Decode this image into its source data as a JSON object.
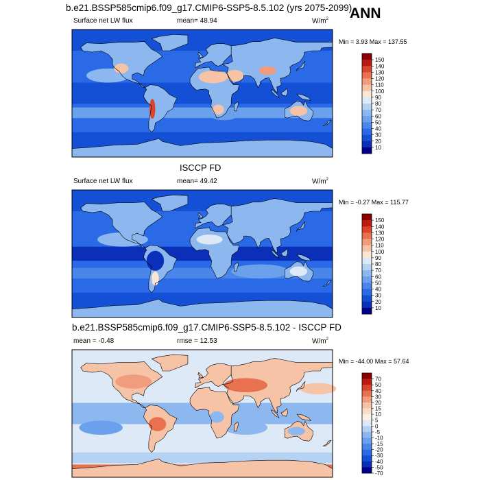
{
  "season": "ANN",
  "charts": [
    {
      "title": "b.e21.BSSP585cmip6.f09_g17.CMIP6-SSP5-8.5.102 (yrs 2075-2099)",
      "left_label": "Surface net LW flux",
      "center_label": "mean=  48.94",
      "unit": "W/m",
      "unit_sup": "2",
      "minmax": "Min =  3.93 Max = 137.55"
    },
    {
      "title": "ISCCP FD",
      "left_label": "Surface net LW flux",
      "center_label": "mean=  49.42",
      "unit": "W/m",
      "unit_sup": "2",
      "minmax": "Min =  -0.27 Max = 115.77"
    },
    {
      "title": "b.e21.BSSP585cmip6.f09_g17.CMIP6-SSP5-8.5.102 - ISCCP FD",
      "left_label": "mean =  -0.48",
      "center_label": "rmse =  12.53",
      "unit": "W/m",
      "unit_sup": "2",
      "minmax": "Min = -44.00 Max =  57.64"
    }
  ],
  "chart_data": [
    {
      "type": "heatmap",
      "title": "b.e21.BSSP585cmip6.f09_g17.CMIP6-SSP5-8.5.102 (yrs 2075-2099)",
      "variable": "Surface net LW flux",
      "units": "W/m2",
      "mean": 48.94,
      "min": 3.93,
      "max": 137.55,
      "colorbar_levels": [
        10,
        20,
        30,
        40,
        50,
        60,
        70,
        80,
        90,
        100,
        110,
        120,
        130,
        140,
        150
      ],
      "colorbar_colors": [
        "#00008b",
        "#0a2fb8",
        "#1450d6",
        "#2a6ae6",
        "#4a86ea",
        "#6aa0ec",
        "#8db8ef",
        "#b6d2f3",
        "#dde9f6",
        "#fbe5d3",
        "#f7c3a6",
        "#f19c7c",
        "#e8714f",
        "#d9452c",
        "#bd1a12",
        "#8b0000"
      ]
    },
    {
      "type": "heatmap",
      "title": "ISCCP FD",
      "variable": "Surface net LW flux",
      "units": "W/m2",
      "mean": 49.42,
      "min": -0.27,
      "max": 115.77,
      "colorbar_levels": [
        10,
        20,
        30,
        40,
        50,
        60,
        70,
        80,
        90,
        100,
        110,
        120,
        130,
        140,
        150
      ],
      "colorbar_colors": [
        "#00008b",
        "#0a2fb8",
        "#1450d6",
        "#2a6ae6",
        "#4a86ea",
        "#6aa0ec",
        "#8db8ef",
        "#b6d2f3",
        "#dde9f6",
        "#fbe5d3",
        "#f7c3a6",
        "#f19c7c",
        "#e8714f",
        "#d9452c",
        "#bd1a12",
        "#8b0000"
      ]
    },
    {
      "type": "heatmap",
      "title": "b.e21.BSSP585cmip6.f09_g17.CMIP6-SSP5-8.5.102 - ISCCP FD",
      "units": "W/m2",
      "mean": -0.48,
      "rmse": 12.53,
      "min": -44.0,
      "max": 57.64,
      "colorbar_levels": [
        -70,
        -50,
        -40,
        -30,
        -20,
        -15,
        -10,
        -5,
        0,
        5,
        10,
        15,
        20,
        30,
        40,
        50,
        70
      ],
      "colorbar_colors": [
        "#00008b",
        "#0a2fb8",
        "#1450d6",
        "#2a6ae6",
        "#4a86ea",
        "#6aa0ec",
        "#8db8ef",
        "#b6d2f3",
        "#dde9f6",
        "#fdf0e6",
        "#fbdcc8",
        "#f7c3a6",
        "#f19c7c",
        "#e8714f",
        "#d9452c",
        "#bd1a12",
        "#8b0000"
      ]
    }
  ]
}
